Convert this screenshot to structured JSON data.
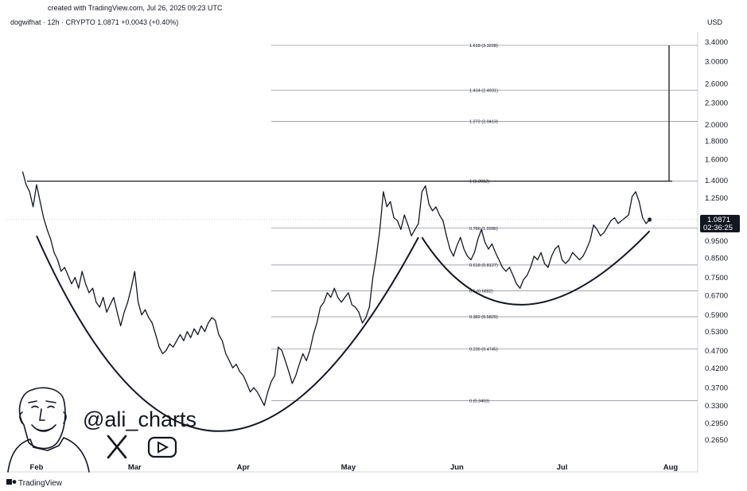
{
  "header": {
    "created_text": "created with TradingView.com, Jul 26, 2025 09:23 UTC",
    "symbol_line": "dogwifhat · 12h · CRYPTO  1.0871  +0.0043 (+0.40%)",
    "currency": "USD"
  },
  "branding": {
    "handle": "@ali_charts",
    "footer": "TradingView",
    "x_icon": "x-logo-icon",
    "youtube_icon": "youtube-play-icon"
  },
  "price_badge": {
    "price": "1.0871",
    "countdown": "02:36:25",
    "color": "#131722"
  },
  "chart_data": {
    "type": "line",
    "scale": "log",
    "series": [
      {
        "color": "#131722",
        "points": [
          [
            "2025-01-28",
            1.48
          ],
          [
            "2025-01-29",
            1.36
          ],
          [
            "2025-01-30",
            1.3
          ],
          [
            "2025-01-31",
            1.18
          ],
          [
            "2025-02-01",
            1.36
          ],
          [
            "2025-02-02",
            1.22
          ],
          [
            "2025-02-03",
            1.1
          ],
          [
            "2025-02-04",
            1.02
          ],
          [
            "2025-02-05",
            0.96
          ],
          [
            "2025-02-06",
            0.88
          ],
          [
            "2025-02-07",
            0.84
          ],
          [
            "2025-02-08",
            0.78
          ],
          [
            "2025-02-09",
            0.8
          ],
          [
            "2025-02-10",
            0.76
          ],
          [
            "2025-02-11",
            0.72
          ],
          [
            "2025-02-12",
            0.75
          ],
          [
            "2025-02-13",
            0.7
          ],
          [
            "2025-02-14",
            0.78
          ],
          [
            "2025-02-15",
            0.72
          ],
          [
            "2025-02-16",
            0.68
          ],
          [
            "2025-02-17",
            0.7
          ],
          [
            "2025-02-18",
            0.64
          ],
          [
            "2025-02-19",
            0.62
          ],
          [
            "2025-02-20",
            0.66
          ],
          [
            "2025-02-21",
            0.6
          ],
          [
            "2025-02-22",
            0.63
          ],
          [
            "2025-02-23",
            0.66
          ],
          [
            "2025-02-24",
            0.6
          ],
          [
            "2025-02-25",
            0.55
          ],
          [
            "2025-02-26",
            0.6
          ],
          [
            "2025-02-27",
            0.64
          ],
          [
            "2025-02-28",
            0.7
          ],
          [
            "2025-03-01",
            0.78
          ],
          [
            "2025-03-02",
            0.64
          ],
          [
            "2025-03-03",
            0.59
          ],
          [
            "2025-03-04",
            0.61
          ],
          [
            "2025-03-05",
            0.58
          ],
          [
            "2025-03-06",
            0.56
          ],
          [
            "2025-03-07",
            0.52
          ],
          [
            "2025-03-08",
            0.48
          ],
          [
            "2025-03-09",
            0.46
          ],
          [
            "2025-03-10",
            0.47
          ],
          [
            "2025-03-11",
            0.49
          ],
          [
            "2025-03-12",
            0.48
          ],
          [
            "2025-03-13",
            0.5
          ],
          [
            "2025-03-14",
            0.52
          ],
          [
            "2025-03-15",
            0.5
          ],
          [
            "2025-03-16",
            0.53
          ],
          [
            "2025-03-17",
            0.51
          ],
          [
            "2025-03-18",
            0.54
          ],
          [
            "2025-03-19",
            0.52
          ],
          [
            "2025-03-20",
            0.55
          ],
          [
            "2025-03-21",
            0.53
          ],
          [
            "2025-03-22",
            0.56
          ],
          [
            "2025-03-23",
            0.58
          ],
          [
            "2025-03-24",
            0.57
          ],
          [
            "2025-03-25",
            0.52
          ],
          [
            "2025-03-26",
            0.5
          ],
          [
            "2025-03-27",
            0.46
          ],
          [
            "2025-03-28",
            0.44
          ],
          [
            "2025-03-29",
            0.42
          ],
          [
            "2025-03-30",
            0.43
          ],
          [
            "2025-03-31",
            0.41
          ],
          [
            "2025-04-01",
            0.4
          ],
          [
            "2025-04-02",
            0.38
          ],
          [
            "2025-04-03",
            0.36
          ],
          [
            "2025-04-04",
            0.37
          ],
          [
            "2025-04-05",
            0.36
          ],
          [
            "2025-04-06",
            0.345
          ],
          [
            "2025-04-07",
            0.33
          ],
          [
            "2025-04-08",
            0.36
          ],
          [
            "2025-04-09",
            0.385
          ],
          [
            "2025-04-10",
            0.4
          ],
          [
            "2025-04-11",
            0.48
          ],
          [
            "2025-04-12",
            0.47
          ],
          [
            "2025-04-13",
            0.44
          ],
          [
            "2025-04-14",
            0.41
          ],
          [
            "2025-04-15",
            0.38
          ],
          [
            "2025-04-16",
            0.4
          ],
          [
            "2025-04-17",
            0.43
          ],
          [
            "2025-04-18",
            0.46
          ],
          [
            "2025-04-19",
            0.44
          ],
          [
            "2025-04-20",
            0.47
          ],
          [
            "2025-04-21",
            0.52
          ],
          [
            "2025-04-22",
            0.56
          ],
          [
            "2025-04-23",
            0.62
          ],
          [
            "2025-04-24",
            0.64
          ],
          [
            "2025-04-25",
            0.68
          ],
          [
            "2025-04-26",
            0.66
          ],
          [
            "2025-04-27",
            0.7
          ],
          [
            "2025-04-28",
            0.66
          ],
          [
            "2025-04-29",
            0.64
          ],
          [
            "2025-04-30",
            0.66
          ],
          [
            "2025-05-01",
            0.68
          ],
          [
            "2025-05-02",
            0.63
          ],
          [
            "2025-05-03",
            0.62
          ],
          [
            "2025-05-04",
            0.6
          ],
          [
            "2025-05-05",
            0.56
          ],
          [
            "2025-05-06",
            0.58
          ],
          [
            "2025-05-07",
            0.62
          ],
          [
            "2025-05-08",
            0.75
          ],
          [
            "2025-05-09",
            0.86
          ],
          [
            "2025-05-10",
            1.02
          ],
          [
            "2025-05-11",
            1.3
          ],
          [
            "2025-05-12",
            1.18
          ],
          [
            "2025-05-13",
            1.22
          ],
          [
            "2025-05-14",
            1.1
          ],
          [
            "2025-05-15",
            1.08
          ],
          [
            "2025-05-16",
            1.02
          ],
          [
            "2025-05-17",
            1.12
          ],
          [
            "2025-05-18",
            1.05
          ],
          [
            "2025-05-19",
            0.98
          ],
          [
            "2025-05-20",
            1.02
          ],
          [
            "2025-05-21",
            1.06
          ],
          [
            "2025-05-22",
            1.3
          ],
          [
            "2025-05-23",
            1.35
          ],
          [
            "2025-05-24",
            1.2
          ],
          [
            "2025-05-25",
            1.15
          ],
          [
            "2025-05-26",
            1.18
          ],
          [
            "2025-05-27",
            1.12
          ],
          [
            "2025-05-28",
            1.08
          ],
          [
            "2025-05-29",
            0.98
          ],
          [
            "2025-05-30",
            0.9
          ],
          [
            "2025-05-31",
            0.86
          ],
          [
            "2025-06-01",
            0.92
          ],
          [
            "2025-06-02",
            0.97
          ],
          [
            "2025-06-03",
            0.9
          ],
          [
            "2025-06-04",
            0.86
          ],
          [
            "2025-06-05",
            0.84
          ],
          [
            "2025-06-06",
            0.88
          ],
          [
            "2025-06-07",
            0.96
          ],
          [
            "2025-06-08",
            1.02
          ],
          [
            "2025-06-09",
            0.94
          ],
          [
            "2025-06-10",
            0.9
          ],
          [
            "2025-06-11",
            0.93
          ],
          [
            "2025-06-12",
            0.88
          ],
          [
            "2025-06-13",
            0.84
          ],
          [
            "2025-06-14",
            0.8
          ],
          [
            "2025-06-15",
            0.78
          ],
          [
            "2025-06-16",
            0.8
          ],
          [
            "2025-06-17",
            0.76
          ],
          [
            "2025-06-18",
            0.72
          ],
          [
            "2025-06-19",
            0.7
          ],
          [
            "2025-06-20",
            0.74
          ],
          [
            "2025-06-21",
            0.76
          ],
          [
            "2025-06-22",
            0.8
          ],
          [
            "2025-06-23",
            0.86
          ],
          [
            "2025-06-24",
            0.84
          ],
          [
            "2025-06-25",
            0.88
          ],
          [
            "2025-06-26",
            0.82
          ],
          [
            "2025-06-27",
            0.8
          ],
          [
            "2025-06-28",
            0.86
          ],
          [
            "2025-06-29",
            0.9
          ],
          [
            "2025-06-30",
            0.92
          ],
          [
            "2025-07-01",
            0.84
          ],
          [
            "2025-07-02",
            0.82
          ],
          [
            "2025-07-03",
            0.84
          ],
          [
            "2025-07-04",
            0.88
          ],
          [
            "2025-07-05",
            0.86
          ],
          [
            "2025-07-06",
            0.84
          ],
          [
            "2025-07-07",
            0.86
          ],
          [
            "2025-07-08",
            0.9
          ],
          [
            "2025-07-09",
            0.95
          ],
          [
            "2025-07-10",
            1.05
          ],
          [
            "2025-07-11",
            1.02
          ],
          [
            "2025-07-12",
            0.98
          ],
          [
            "2025-07-13",
            1.0
          ],
          [
            "2025-07-14",
            1.04
          ],
          [
            "2025-07-15",
            1.08
          ],
          [
            "2025-07-16",
            1.1
          ],
          [
            "2025-07-17",
            1.06
          ],
          [
            "2025-07-18",
            1.08
          ],
          [
            "2025-07-19",
            1.1
          ],
          [
            "2025-07-20",
            1.12
          ],
          [
            "2025-07-21",
            1.26
          ],
          [
            "2025-07-22",
            1.3
          ],
          [
            "2025-07-23",
            1.22
          ],
          [
            "2025-07-24",
            1.1
          ],
          [
            "2025-07-25",
            1.06
          ],
          [
            "2025-07-26",
            1.0871
          ]
        ]
      }
    ],
    "fib_levels": [
      {
        "ratio": "1.618",
        "price": 3.3228,
        "label": "1.618 (3.3228)"
      },
      {
        "ratio": "1.414",
        "price": 2.4931,
        "label": "1.414 (2.4931)"
      },
      {
        "ratio": "1.272",
        "price": 2.0413,
        "label": "1.272 (2.0413)"
      },
      {
        "ratio": "1",
        "price": 1.3912,
        "label": "1 (1.3912)"
      },
      {
        "ratio": "0.786",
        "price": 1.0286,
        "label": "0.786 (1.0286)"
      },
      {
        "ratio": "0.618",
        "price": 0.8127,
        "label": "0.618 (0.8127)"
      },
      {
        "ratio": "0.5",
        "price": 0.6882,
        "label": "0.5 (0.6882)"
      },
      {
        "ratio": "0.382",
        "price": 0.5829,
        "label": "0.382 (0.5829)"
      },
      {
        "ratio": "0.236",
        "price": 0.4745,
        "label": "0.236 (0.4745)"
      },
      {
        "ratio": "0",
        "price": 0.3403,
        "label": "0 (0.3403)"
      }
    ],
    "neckline_price": 1.3912,
    "target_line": {
      "from_price": 1.3912,
      "to_price": 3.3228,
      "date": "2025-07-27"
    },
    "cup_curves": [
      {
        "name_hint": "cup",
        "start": [
          "2025-02-01",
          0.98
        ],
        "bottom": [
          "2025-03-25",
          0.28
        ],
        "end": [
          "2025-05-21",
          0.97
        ]
      },
      {
        "name_hint": "handle",
        "start": [
          "2025-05-22",
          0.97
        ],
        "bottom": [
          "2025-06-20",
          0.63
        ],
        "end": [
          "2025-07-26",
          1.01
        ]
      }
    ],
    "yaxis": {
      "ticks": [
        "3.4000",
        "3.0000",
        "2.6000",
        "2.3000",
        "2.0000",
        "1.8000",
        "1.6000",
        "1.4000",
        "1.2500",
        "0.9500",
        "0.8500",
        "0.7500",
        "0.6700",
        "0.5900",
        "0.5300",
        "0.4700",
        "0.4200",
        "0.3700",
        "0.3300",
        "0.2950",
        "0.2650"
      ],
      "ylim": [
        0.25,
        3.55
      ]
    },
    "xaxis": {
      "labels": [
        {
          "text": "Feb",
          "date": "2025-02-01"
        },
        {
          "text": "Mar",
          "date": "2025-03-01"
        },
        {
          "text": "Apr",
          "date": "2025-04-01"
        },
        {
          "text": "May",
          "date": "2025-05-01"
        },
        {
          "text": "Jun",
          "date": "2025-06-01"
        },
        {
          "text": "Jul",
          "date": "2025-07-01"
        },
        {
          "text": "Aug",
          "date": "2025-08-01"
        }
      ],
      "xlim": [
        "2025-01-28",
        "2025-08-06"
      ]
    }
  }
}
